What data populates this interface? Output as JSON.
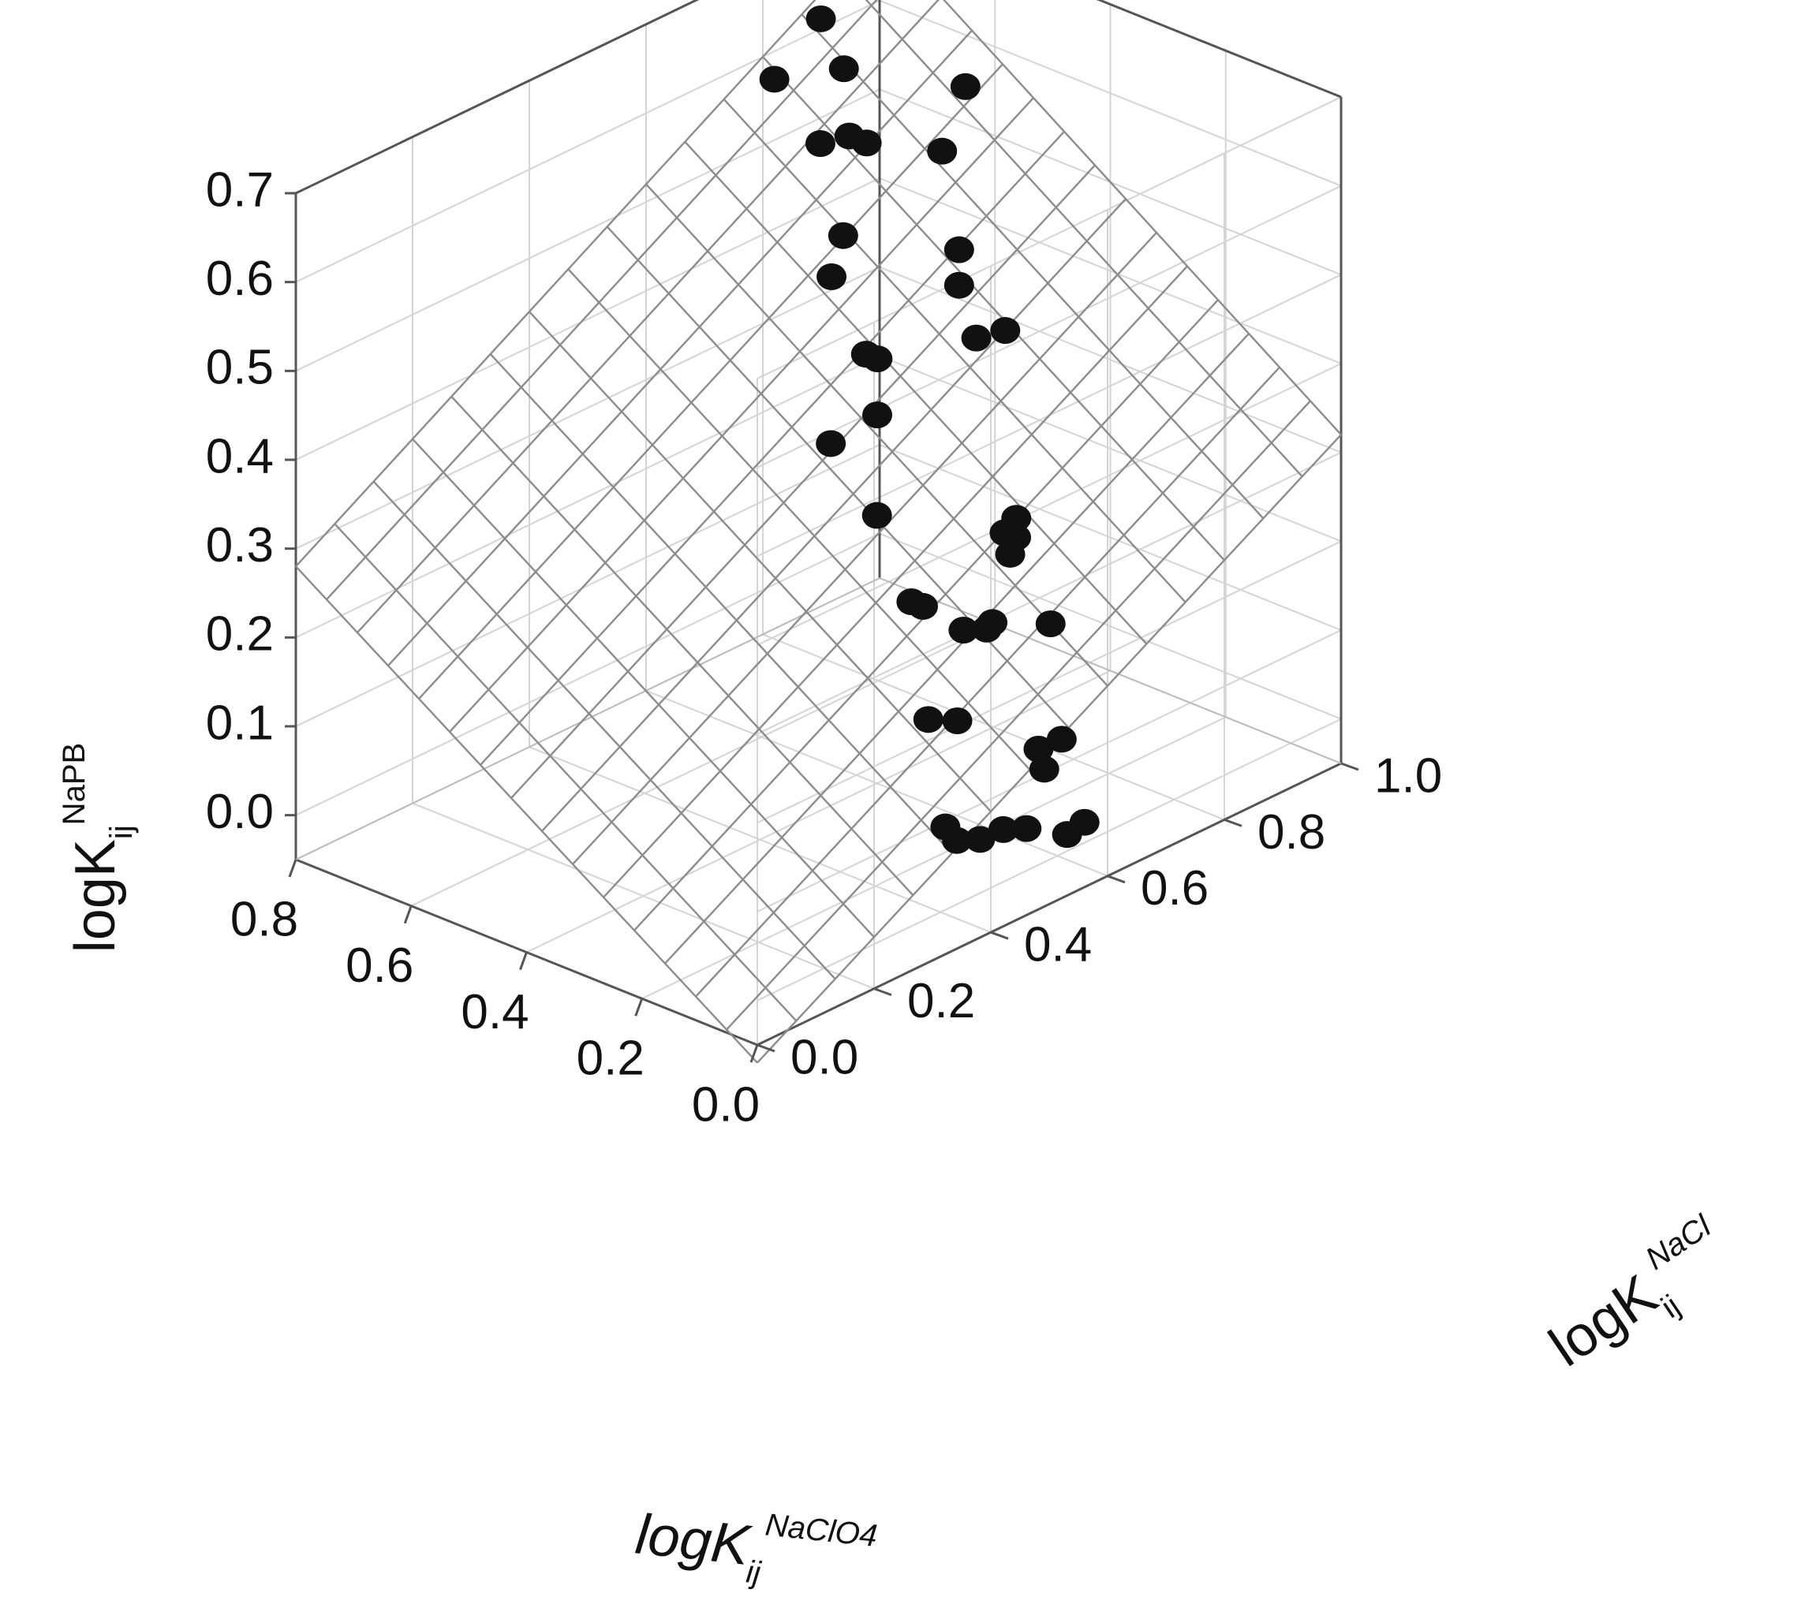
{
  "chart_data": {
    "type": "scatter",
    "subtype": "3d-scatter-with-fitted-plane",
    "grid": true,
    "x_axis": {
      "label_base": "logK",
      "label_sub": "ij",
      "label_sup": "NaClO4",
      "range": [
        0.0,
        0.8
      ],
      "ticks": [
        "0.0",
        "0.2",
        "0.4",
        "0.6",
        "0.8"
      ]
    },
    "y_axis": {
      "label_base": "logK",
      "label_sub": "ij",
      "label_sup": "NaCl",
      "range": [
        0.0,
        1.0
      ],
      "ticks": [
        "0.0",
        "0.2",
        "0.4",
        "0.6",
        "0.8",
        "1.0"
      ]
    },
    "z_axis": {
      "label_base": "logK",
      "label_sub": "ij",
      "label_sup": "NaPB",
      "range": [
        -0.05,
        0.7
      ],
      "ticks": [
        "0.0",
        "0.1",
        "0.2",
        "0.3",
        "0.4",
        "0.5",
        "0.6",
        "0.7"
      ]
    },
    "fitted_plane": {
      "corners": [
        {
          "x": 0.8,
          "y": 1.0,
          "z": 0.68
        },
        {
          "x": 0.0,
          "y": 1.0,
          "z": 0.32
        },
        {
          "x": 0.0,
          "y": 0.0,
          "z": -0.07
        },
        {
          "x": 0.8,
          "y": 0.0,
          "z": 0.28
        }
      ],
      "divisions": 15
    },
    "points": [
      {
        "x": 0.75,
        "y": 0.85,
        "z": 0.64
      },
      {
        "x": 0.7,
        "y": 0.84,
        "z": 0.6
      },
      {
        "x": 0.78,
        "y": 0.8,
        "z": 0.58
      },
      {
        "x": 0.68,
        "y": 0.78,
        "z": 0.54
      },
      {
        "x": 0.65,
        "y": 0.8,
        "z": 0.55
      },
      {
        "x": 0.62,
        "y": 0.8,
        "z": 0.55
      },
      {
        "x": 0.55,
        "y": 0.9,
        "z": 0.6
      },
      {
        "x": 0.55,
        "y": 0.86,
        "z": 0.54
      },
      {
        "x": 0.6,
        "y": 0.74,
        "z": 0.47
      },
      {
        "x": 0.6,
        "y": 0.72,
        "z": 0.43
      },
      {
        "x": 0.48,
        "y": 0.82,
        "z": 0.46
      },
      {
        "x": 0.48,
        "y": 0.82,
        "z": 0.42
      },
      {
        "x": 0.52,
        "y": 0.7,
        "z": 0.37
      },
      {
        "x": 0.5,
        "y": 0.7,
        "z": 0.37
      },
      {
        "x": 0.43,
        "y": 0.8,
        "z": 0.38
      },
      {
        "x": 0.4,
        "y": 0.82,
        "z": 0.39
      },
      {
        "x": 0.46,
        "y": 0.66,
        "z": 0.33
      },
      {
        "x": 0.5,
        "y": 0.62,
        "z": 0.3
      },
      {
        "x": 0.42,
        "y": 0.62,
        "z": 0.24
      },
      {
        "x": 0.3,
        "y": 0.74,
        "z": 0.23
      },
      {
        "x": 0.3,
        "y": 0.72,
        "z": 0.22
      },
      {
        "x": 0.28,
        "y": 0.72,
        "z": 0.22
      },
      {
        "x": 0.27,
        "y": 0.7,
        "z": 0.21
      },
      {
        "x": 0.34,
        "y": 0.6,
        "z": 0.17
      },
      {
        "x": 0.32,
        "y": 0.6,
        "z": 0.17
      },
      {
        "x": 0.27,
        "y": 0.62,
        "z": 0.15
      },
      {
        "x": 0.25,
        "y": 0.64,
        "z": 0.15
      },
      {
        "x": 0.24,
        "y": 0.64,
        "z": 0.16
      },
      {
        "x": 0.2,
        "y": 0.7,
        "z": 0.15
      },
      {
        "x": 0.25,
        "y": 0.54,
        "z": 0.08
      },
      {
        "x": 0.22,
        "y": 0.56,
        "z": 0.08
      },
      {
        "x": 0.14,
        "y": 0.62,
        "z": 0.05
      },
      {
        "x": 0.12,
        "y": 0.64,
        "z": 0.06
      },
      {
        "x": 0.13,
        "y": 0.62,
        "z": 0.03
      },
      {
        "x": 0.18,
        "y": 0.5,
        "z": -0.01
      },
      {
        "x": 0.16,
        "y": 0.5,
        "z": -0.02
      },
      {
        "x": 0.14,
        "y": 0.52,
        "z": -0.02
      },
      {
        "x": 0.12,
        "y": 0.54,
        "z": -0.01
      },
      {
        "x": 0.1,
        "y": 0.56,
        "z": -0.01
      },
      {
        "x": 0.05,
        "y": 0.58,
        "z": -0.01
      },
      {
        "x": 0.04,
        "y": 0.6,
        "z": 0.0
      }
    ]
  }
}
